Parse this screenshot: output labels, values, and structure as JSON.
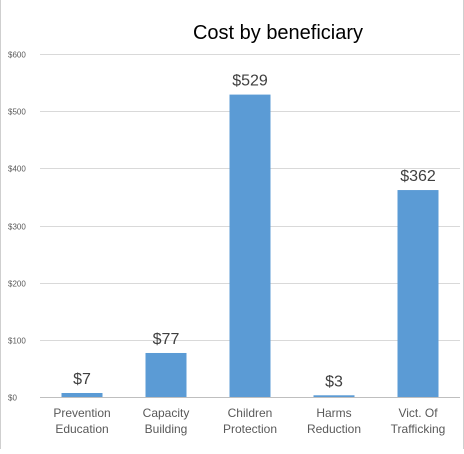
{
  "chart_data": {
    "type": "bar",
    "title": "Cost by beneficiary",
    "xlabel": "",
    "ylabel": "",
    "categories": [
      [
        "Prevention",
        "Education"
      ],
      [
        "Capacity",
        "Building"
      ],
      [
        "Children",
        "Protection"
      ],
      [
        "Harms",
        "Reduction"
      ],
      [
        "Vict. Of",
        "Trafficking"
      ]
    ],
    "values": [
      7,
      77,
      529,
      3,
      362
    ],
    "data_labels": [
      "$7",
      "$77",
      "$529",
      "$3",
      "$362"
    ],
    "ylim": [
      0,
      600
    ],
    "y_ticks": [
      0,
      100,
      200,
      300,
      400,
      500,
      600
    ],
    "y_tick_labels": [
      "$0",
      "$100",
      "$200",
      "$300",
      "$400",
      "$500",
      "$600"
    ],
    "grid": true,
    "legend": "none",
    "colors": {
      "bar": "#5b9bd5",
      "grid": "#d9d9d9",
      "axis_text": "#595959",
      "label_text": "#404040",
      "title_text": "#000000"
    }
  }
}
